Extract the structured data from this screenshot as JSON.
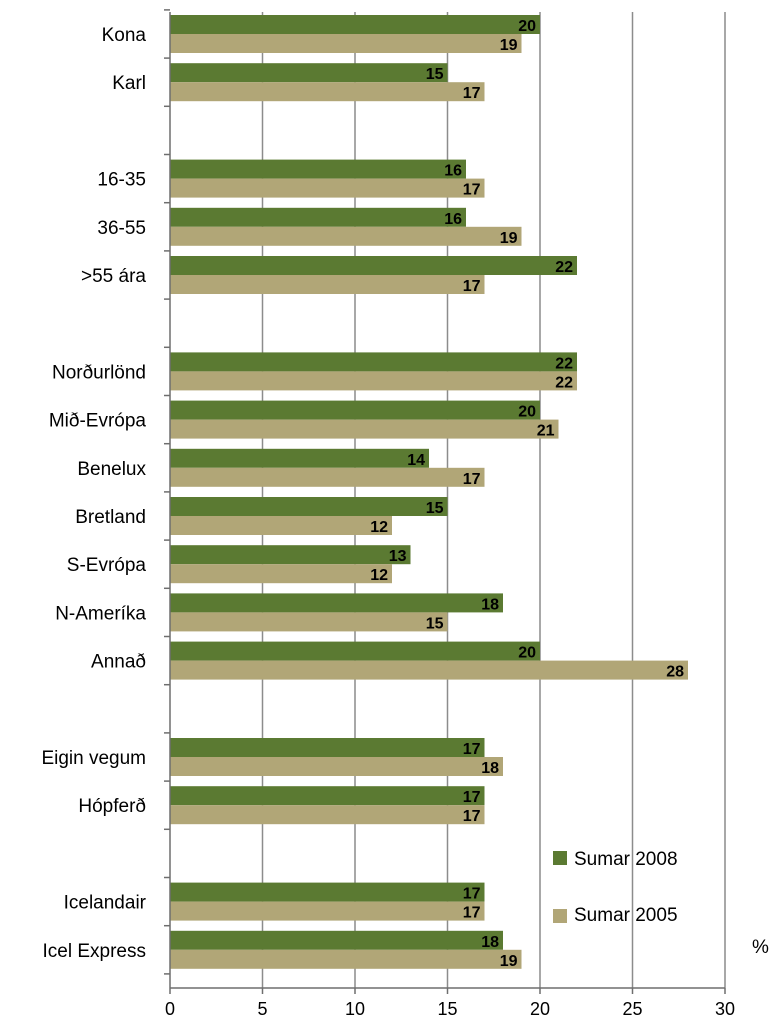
{
  "chart_data": {
    "type": "bar",
    "orientation": "horizontal",
    "categories": [
      "Kona",
      "Karl",
      "16-35",
      "36-55",
      ">55 ára",
      "Norðurlönd",
      "Mið-Evrópa",
      "Benelux",
      "Bretland",
      "S-Evrópa",
      "N-Ameríka",
      "Annað",
      "Eigin vegum",
      "Hópferð",
      "Icelandair",
      "Icel Express"
    ],
    "groups": [
      2,
      3,
      7,
      2,
      2
    ],
    "series": [
      {
        "name": "Sumar 2008",
        "color": "#5b7a32",
        "values": [
          20,
          15,
          16,
          16,
          22,
          22,
          20,
          14,
          15,
          13,
          18,
          20,
          17,
          17,
          17,
          18
        ]
      },
      {
        "name": "Sumar 2005",
        "color": "#b1a677",
        "values": [
          19,
          17,
          17,
          19,
          17,
          22,
          21,
          17,
          12,
          12,
          15,
          28,
          18,
          17,
          17,
          19
        ]
      }
    ],
    "xlim": [
      0,
      30
    ],
    "xticks": [
      "0",
      "5",
      "10",
      "15",
      "20",
      "25",
      "30"
    ],
    "unit": "%",
    "grid": true,
    "legend_position": "bottom-right"
  }
}
